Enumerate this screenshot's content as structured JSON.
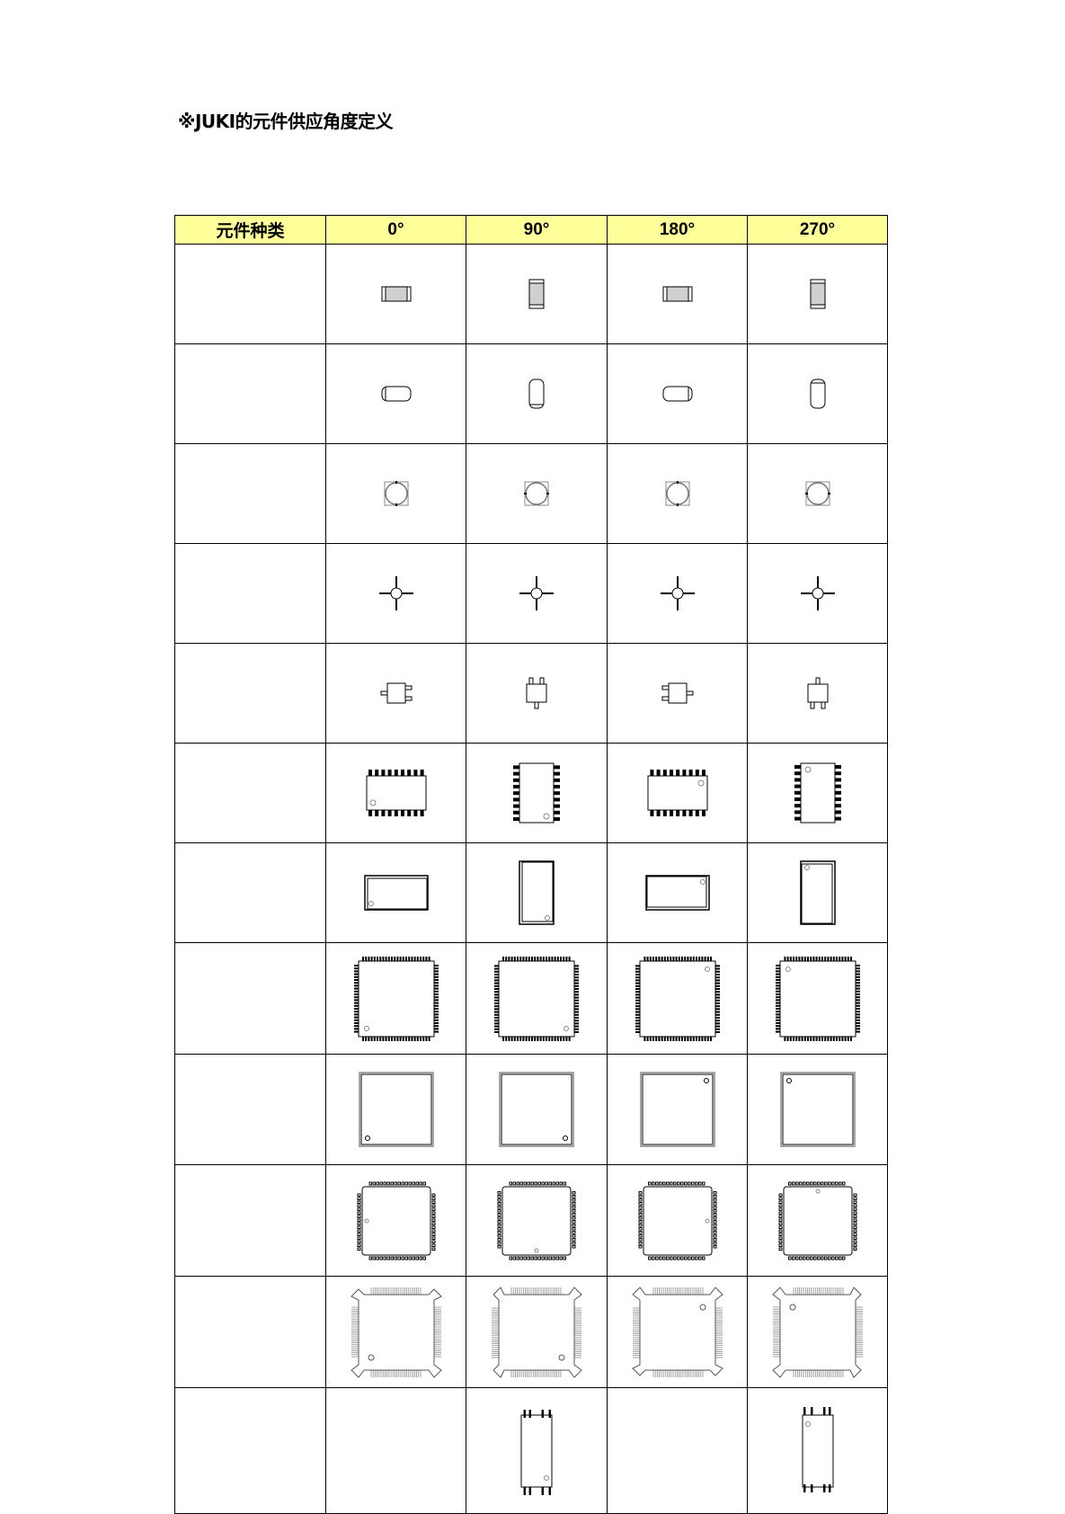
{
  "title": "※JUKI的元件供应角度定义",
  "table": {
    "headers": [
      "元件种类",
      "0°",
      "90°",
      "180°",
      "270°"
    ],
    "header_bg": "#ffff99",
    "rows": [
      {
        "category": "",
        "icon": "chip-component-icon",
        "type": "chip",
        "angles": [
          0,
          90,
          180,
          270
        ]
      },
      {
        "category": "",
        "icon": "melf-component-icon",
        "type": "melf",
        "angles": [
          0,
          90,
          180,
          270
        ]
      },
      {
        "category": "",
        "icon": "power-inductor-icon",
        "type": "inductor",
        "angles": [
          0,
          90,
          180,
          270
        ]
      },
      {
        "category": "",
        "icon": "four-lead-transistor-icon",
        "type": "cross",
        "angles": [
          0,
          90,
          180,
          270
        ]
      },
      {
        "category": "",
        "icon": "sot-component-icon",
        "type": "sot",
        "angles": [
          0,
          90,
          180,
          270
        ]
      },
      {
        "category": "",
        "icon": "sop-ic-icon",
        "type": "sop",
        "angles": [
          0,
          90,
          180,
          270
        ]
      },
      {
        "category": "",
        "icon": "soj-ic-icon",
        "type": "soj",
        "angles": [
          0,
          90,
          180,
          270
        ]
      },
      {
        "category": "",
        "icon": "qfp-ic-icon",
        "type": "qfp",
        "angles": [
          0,
          90,
          180,
          270
        ]
      },
      {
        "category": "",
        "icon": "bga-ic-icon",
        "type": "bga",
        "angles": [
          0,
          90,
          180,
          270
        ]
      },
      {
        "category": "",
        "icon": "qfn-ic-icon",
        "type": "qfn",
        "angles": [
          0,
          90,
          180,
          270
        ]
      },
      {
        "category": "",
        "icon": "bumpered-qfp-icon",
        "type": "bqfp",
        "angles": [
          0,
          90,
          180,
          270
        ]
      },
      {
        "category": "",
        "icon": "tsop-ic-icon",
        "type": "tsop",
        "angles": [
          90,
          270
        ]
      }
    ]
  }
}
